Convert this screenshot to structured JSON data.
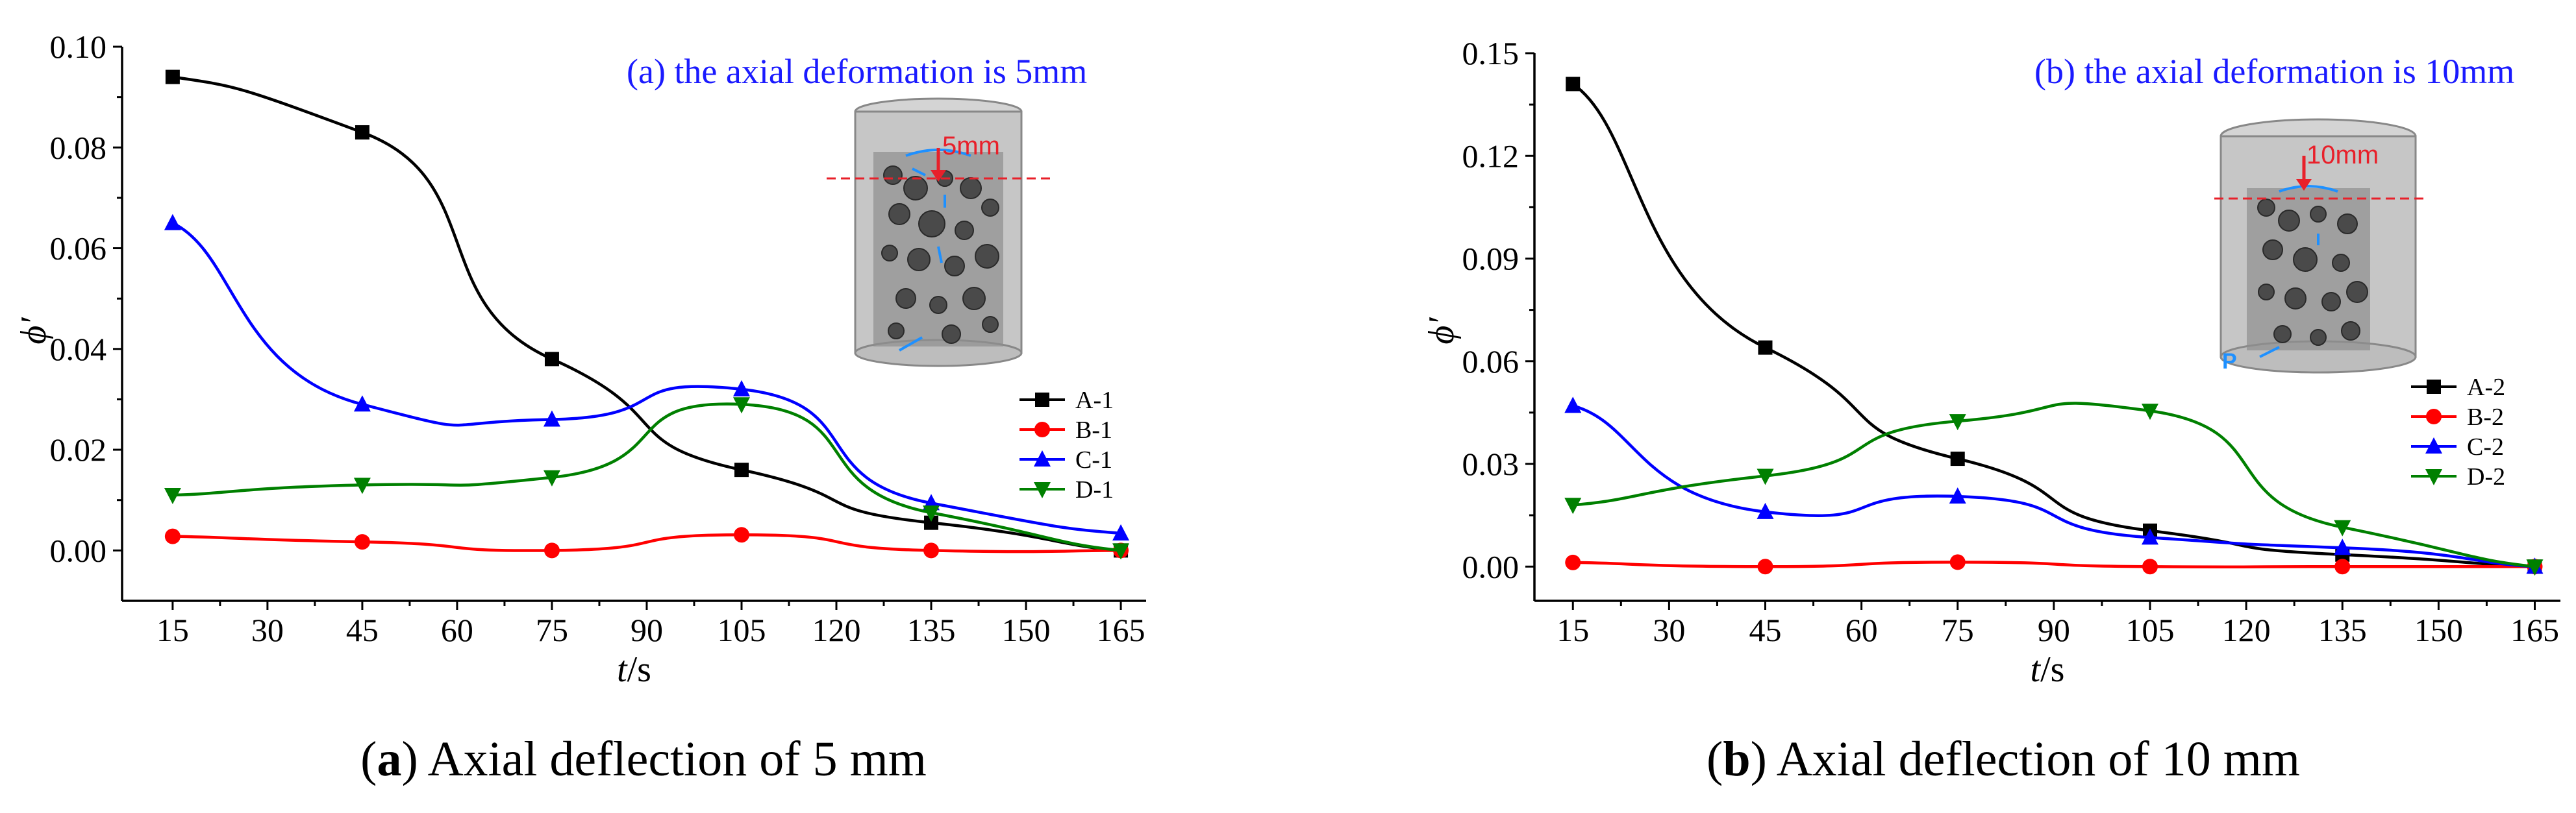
{
  "chart_data": [
    {
      "type": "line",
      "panel_letter": "a",
      "caption_text": " Axial deflection of 5 mm",
      "annotation": "(a) the axial deformation is 5mm",
      "inset_label": "5mm",
      "xlabel_var": "t",
      "xlabel_unit": "/s",
      "ylabel": "ϕ′",
      "xlim": [
        7,
        169
      ],
      "ylim": [
        -0.01,
        0.1
      ],
      "xticks": [
        15,
        30,
        45,
        60,
        75,
        90,
        105,
        120,
        135,
        150,
        165
      ],
      "yticks": [
        0.0,
        0.02,
        0.04,
        0.06,
        0.08,
        0.1
      ],
      "ytick_labels": [
        "0.00",
        "0.02",
        "0.04",
        "0.06",
        "0.08",
        "0.10"
      ],
      "x": [
        15,
        45,
        75,
        105,
        135,
        165
      ],
      "legend_position": "lower-right",
      "series": [
        {
          "name": "A-1",
          "color": "#000000",
          "marker": "square",
          "values": [
            0.094,
            0.083,
            0.038,
            0.016,
            0.0055,
            0.0
          ]
        },
        {
          "name": "B-1",
          "color": "#ff0000",
          "marker": "circle",
          "values": [
            0.0028,
            0.0017,
            0.0,
            0.0031,
            0.0,
            0.0
          ]
        },
        {
          "name": "C-1",
          "color": "#0000ff",
          "marker": "triangle-up",
          "values": [
            0.065,
            0.029,
            0.026,
            0.032,
            0.0094,
            0.0034
          ]
        },
        {
          "name": "D-1",
          "color": "#008000",
          "marker": "triangle-down",
          "values": [
            0.011,
            0.013,
            0.0145,
            0.029,
            0.0075,
            0.0
          ]
        }
      ]
    },
    {
      "type": "line",
      "panel_letter": "b",
      "caption_text": " Axial deflection of 10 mm",
      "annotation": "(b) the axial deformation is 10mm",
      "inset_label": "10mm",
      "inset_extra": "P",
      "xlabel_var": "t",
      "xlabel_unit": "/s",
      "ylabel": "ϕ′",
      "xlim": [
        9,
        169
      ],
      "ylim": [
        -0.01,
        0.15
      ],
      "xticks": [
        15,
        30,
        45,
        60,
        75,
        90,
        105,
        120,
        135,
        150,
        165
      ],
      "yticks": [
        0.0,
        0.03,
        0.06,
        0.09,
        0.12,
        0.15
      ],
      "ytick_labels": [
        "0.00",
        "0.03",
        "0.06",
        "0.09",
        "0.12",
        "0.15"
      ],
      "x": [
        15,
        45,
        75,
        105,
        135,
        165
      ],
      "legend_position": "right",
      "series": [
        {
          "name": "A-2",
          "color": "#000000",
          "marker": "square",
          "values": [
            0.141,
            0.064,
            0.0315,
            0.0105,
            0.0035,
            0.0
          ]
        },
        {
          "name": "B-2",
          "color": "#ff0000",
          "marker": "circle",
          "values": [
            0.0012,
            0.0,
            0.0013,
            0.0,
            0.0,
            0.0
          ]
        },
        {
          "name": "C-2",
          "color": "#0000ff",
          "marker": "triangle-up",
          "values": [
            0.047,
            0.016,
            0.0205,
            0.0085,
            0.0055,
            0.0
          ]
        },
        {
          "name": "D-2",
          "color": "#008000",
          "marker": "triangle-down",
          "values": [
            0.018,
            0.0265,
            0.0425,
            0.0455,
            0.0115,
            0.0
          ]
        }
      ]
    }
  ],
  "colors": {
    "annotation": "#1a1aff",
    "dimension_arrow": "#e8202a",
    "inset_bucket": "#b9b9b9",
    "inset_rock": "#555555"
  }
}
